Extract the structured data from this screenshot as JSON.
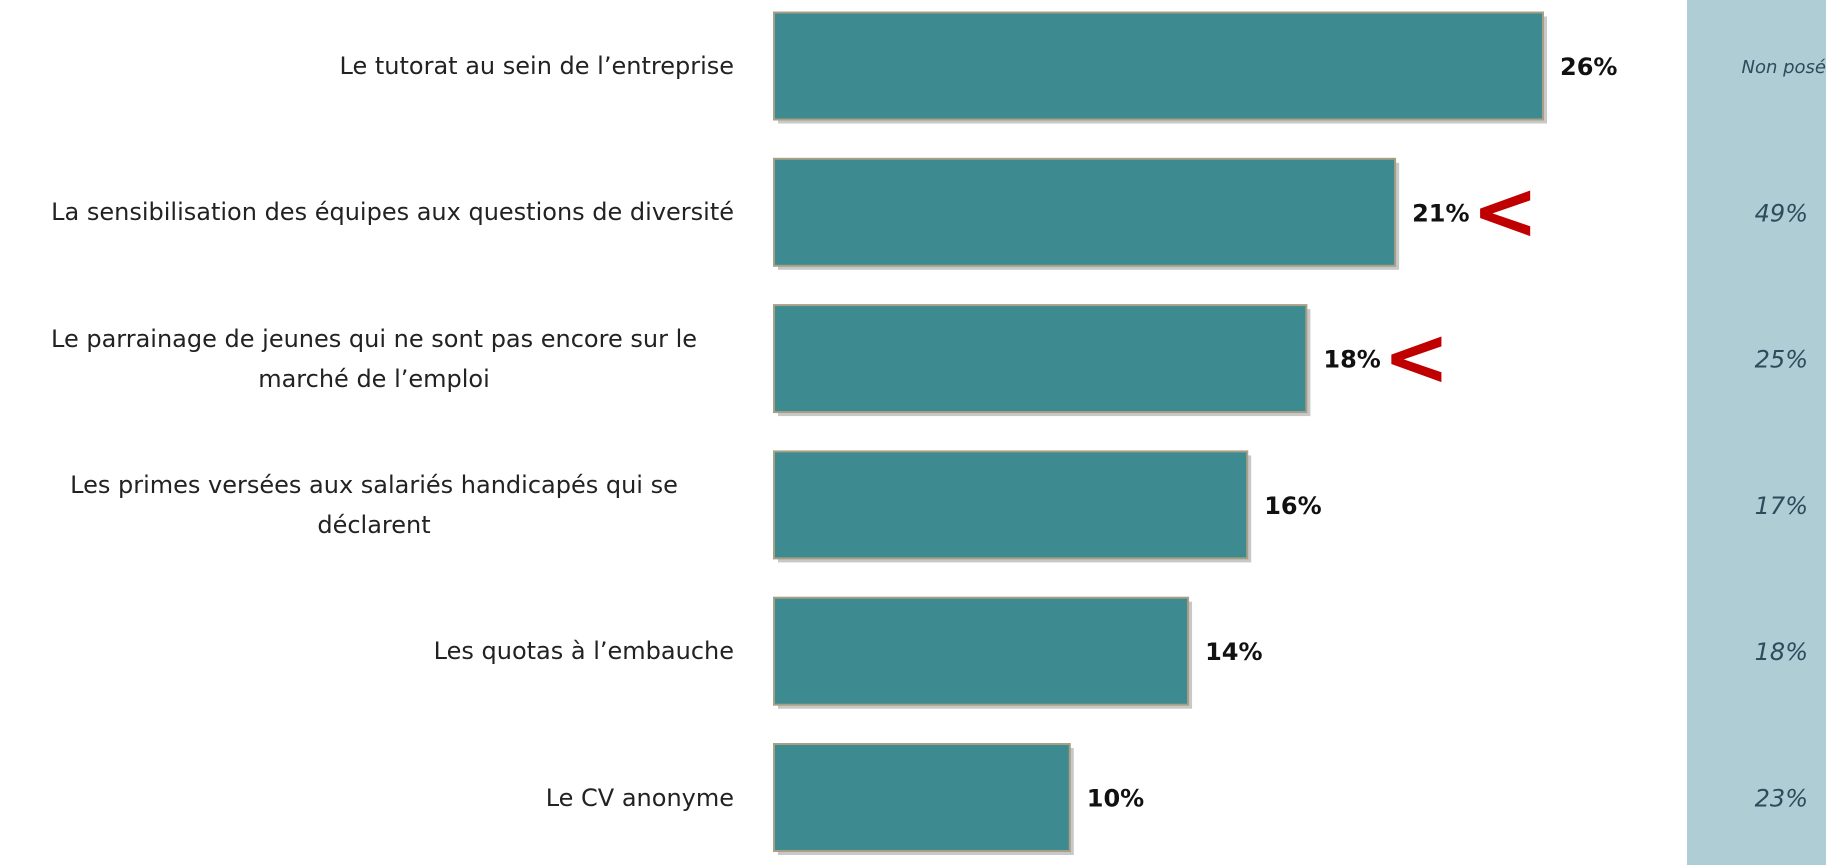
{
  "chart_data": {
    "type": "bar",
    "orientation": "horizontal",
    "categories": [
      "Le tutorat au sein de l’entreprise",
      "La sensibilisation des équipes aux questions de diversité",
      "Le parrainage  de jeunes qui ne sont pas encore sur le marché de l’emploi",
      "Les primes versées aux salariés handicapés qui se déclarent",
      "Les quotas à l’embauche",
      "Le CV anonyme"
    ],
    "values": [
      26,
      21,
      18,
      16,
      14,
      10
    ],
    "value_labels": [
      "26%",
      "21%",
      "18%",
      "16%",
      "14%",
      "10%"
    ],
    "color": "#3d8b91",
    "xlim": [
      0,
      26
    ],
    "markers": [
      null,
      "<",
      "<",
      null,
      null,
      null
    ],
    "marker_color": "#c00000",
    "comparison": {
      "values": [
        null,
        49,
        25,
        17,
        18,
        23
      ],
      "value_labels": [
        "Non posé",
        "49%",
        "25%",
        "17%",
        "18%",
        "23%"
      ],
      "color": "#aecdd4"
    }
  }
}
